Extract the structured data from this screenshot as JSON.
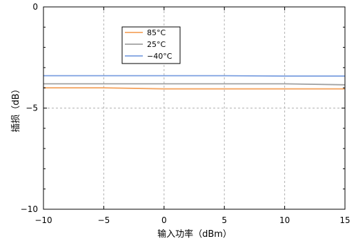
{
  "chart_data": {
    "type": "line",
    "xlabel": "输入功率（dBm）",
    "ylabel": "插损（dB）",
    "xlim": [
      -10,
      15
    ],
    "ylim": [
      -10,
      0
    ],
    "xticks": [
      -10,
      -5,
      0,
      5,
      10,
      15
    ],
    "yticks": [
      -10,
      -5,
      0
    ],
    "xtick_labels": [
      "−10",
      "−5",
      "0",
      "5",
      "10",
      "15"
    ],
    "ytick_labels": [
      "−10",
      "−5",
      "0"
    ],
    "grid": true,
    "legend_position": "top-left",
    "series": [
      {
        "name": "85°C",
        "color": "#f4a460",
        "x": [
          -10,
          -5,
          0,
          5,
          10,
          15
        ],
        "y": [
          -4.0,
          -4.0,
          -4.05,
          -4.05,
          -4.05,
          -4.05
        ]
      },
      {
        "name": "25°C",
        "color": "#a0a0a0",
        "x": [
          -10,
          -5,
          0,
          5,
          10,
          15
        ],
        "y": [
          -3.8,
          -3.8,
          -3.8,
          -3.8,
          -3.8,
          -3.85
        ]
      },
      {
        "name": "−40°C",
        "color": "#7b9fe0",
        "x": [
          -10,
          -5,
          0,
          5,
          10,
          15
        ],
        "y": [
          -3.4,
          -3.4,
          -3.4,
          -3.4,
          -3.42,
          -3.42
        ]
      }
    ]
  }
}
